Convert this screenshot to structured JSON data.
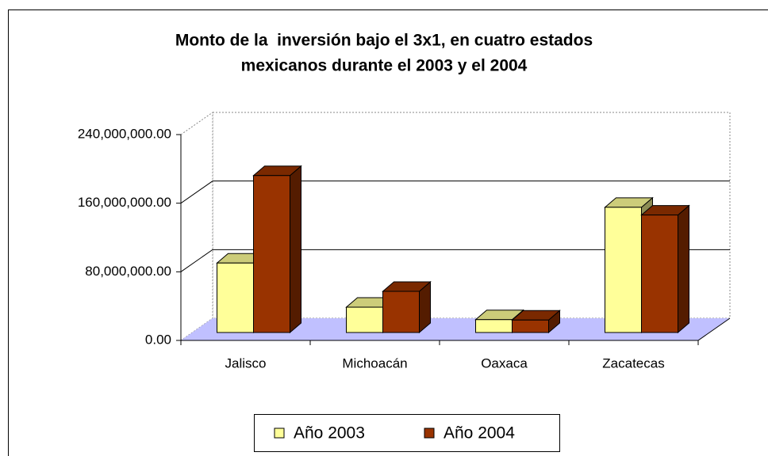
{
  "chart_data": {
    "type": "bar3d",
    "title": [
      "Monto de la  inversión bajo el 3x1, en cuatro estados",
      "mexicanos durante el 2003 y el 2004"
    ],
    "categories": [
      "Jalisco",
      "Michoacán",
      "Oaxaca",
      "Zacatecas"
    ],
    "series": [
      {
        "name": "Año 2003",
        "color": "#ffff99",
        "values": [
          81000000,
          29500000,
          15000000,
          146000000
        ]
      },
      {
        "name": "Año 2004",
        "color": "#993300",
        "values": [
          183000000,
          48000000,
          14500000,
          137000000
        ]
      }
    ],
    "ylim": [
      0,
      240000000
    ],
    "yticks": [
      {
        "value": 0,
        "label": "0.00"
      },
      {
        "value": 80000000,
        "label": "80,000,000.00"
      },
      {
        "value": 160000000,
        "label": "160,000,000.00"
      },
      {
        "value": 240000000,
        "label": "240,000,000.00"
      }
    ],
    "grid": true,
    "legend": "bottom",
    "floor_color": "#c0c0ff"
  }
}
